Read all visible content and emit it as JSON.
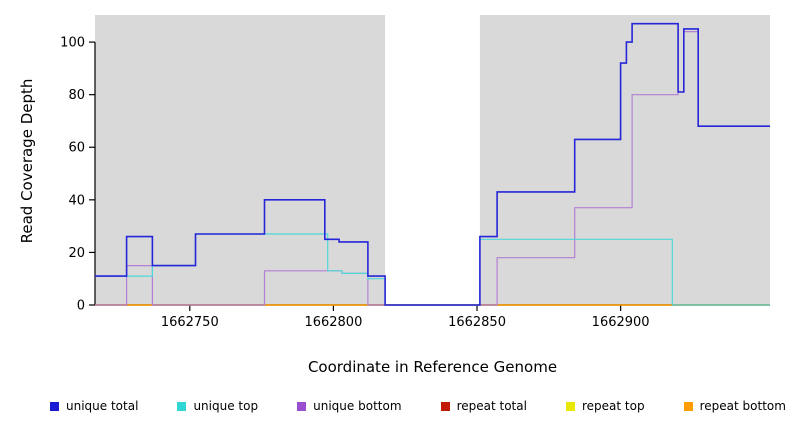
{
  "chart_data": {
    "type": "line",
    "step": true,
    "title": "",
    "xlabel": "Coordinate in Reference Genome",
    "ylabel": "Read Coverage Depth",
    "xlim": [
      1662717,
      1662952
    ],
    "ylim": [
      0,
      110.3
    ],
    "x_ticks": [
      1662750,
      1662800,
      1662850,
      1662900
    ],
    "y_ticks": [
      0,
      20,
      40,
      60,
      80,
      100
    ],
    "grid": false,
    "legend_position": "bottom",
    "background_regions": [
      {
        "name": "covered-region-left",
        "x0": 1662717,
        "x1": 1662818,
        "color": "#d9d9d9"
      },
      {
        "name": "covered-region-right",
        "x0": 1662851,
        "x1": 1662952,
        "color": "#d9d9d9"
      }
    ],
    "series": [
      {
        "name": "repeat total",
        "color": "#c21807",
        "width": 1.2,
        "points": [
          [
            1662717,
            0
          ],
          [
            1662952,
            0
          ]
        ]
      },
      {
        "name": "repeat top",
        "color": "#e8e800",
        "width": 1.2,
        "points": [
          [
            1662717,
            0
          ],
          [
            1662952,
            0
          ]
        ]
      },
      {
        "name": "repeat bottom",
        "color": "#ff9c00",
        "width": 1.2,
        "points": [
          [
            1662717,
            0
          ],
          [
            1662952,
            0
          ]
        ]
      },
      {
        "name": "unique bottom",
        "color": "#b27fd4",
        "width": 1.2,
        "points": [
          [
            1662717,
            0
          ],
          [
            1662728,
            15
          ],
          [
            1662737,
            0
          ],
          [
            1662776,
            13
          ],
          [
            1662803,
            12
          ],
          [
            1662812,
            0
          ],
          [
            1662857,
            18
          ],
          [
            1662884,
            37
          ],
          [
            1662904,
            80
          ],
          [
            1662920,
            81
          ],
          [
            1662922,
            104
          ],
          [
            1662927,
            68
          ],
          [
            1662952,
            68
          ]
        ]
      },
      {
        "name": "unique top",
        "color": "#4fd8d8",
        "width": 1.2,
        "points": [
          [
            1662717,
            11
          ],
          [
            1662737,
            15
          ],
          [
            1662752,
            27
          ],
          [
            1662798,
            13
          ],
          [
            1662803,
            12
          ],
          [
            1662812,
            10
          ],
          [
            1662818,
            0
          ],
          [
            1662851,
            25
          ],
          [
            1662918,
            0
          ],
          [
            1662952,
            0
          ]
        ]
      },
      {
        "name": "unique total",
        "color": "#2626d8",
        "width": 1.6,
        "points": [
          [
            1662717,
            11
          ],
          [
            1662728,
            26
          ],
          [
            1662737,
            15
          ],
          [
            1662752,
            27
          ],
          [
            1662776,
            40
          ],
          [
            1662797,
            25
          ],
          [
            1662802,
            24
          ],
          [
            1662812,
            11
          ],
          [
            1662818,
            0
          ],
          [
            1662851,
            26
          ],
          [
            1662857,
            43
          ],
          [
            1662884,
            63
          ],
          [
            1662900,
            92
          ],
          [
            1662902,
            100
          ],
          [
            1662904,
            107
          ],
          [
            1662920,
            81
          ],
          [
            1662922,
            105
          ],
          [
            1662927,
            68
          ],
          [
            1662952,
            68
          ]
        ]
      }
    ],
    "legend": [
      {
        "label": "unique total",
        "color": "#1a1ad1"
      },
      {
        "label": "unique top",
        "color": "#30d5d5"
      },
      {
        "label": "unique bottom",
        "color": "#9b4fd0"
      },
      {
        "label": "repeat total",
        "color": "#c21807"
      },
      {
        "label": "repeat top",
        "color": "#e8e800"
      },
      {
        "label": "repeat bottom",
        "color": "#ff9c00"
      }
    ]
  }
}
